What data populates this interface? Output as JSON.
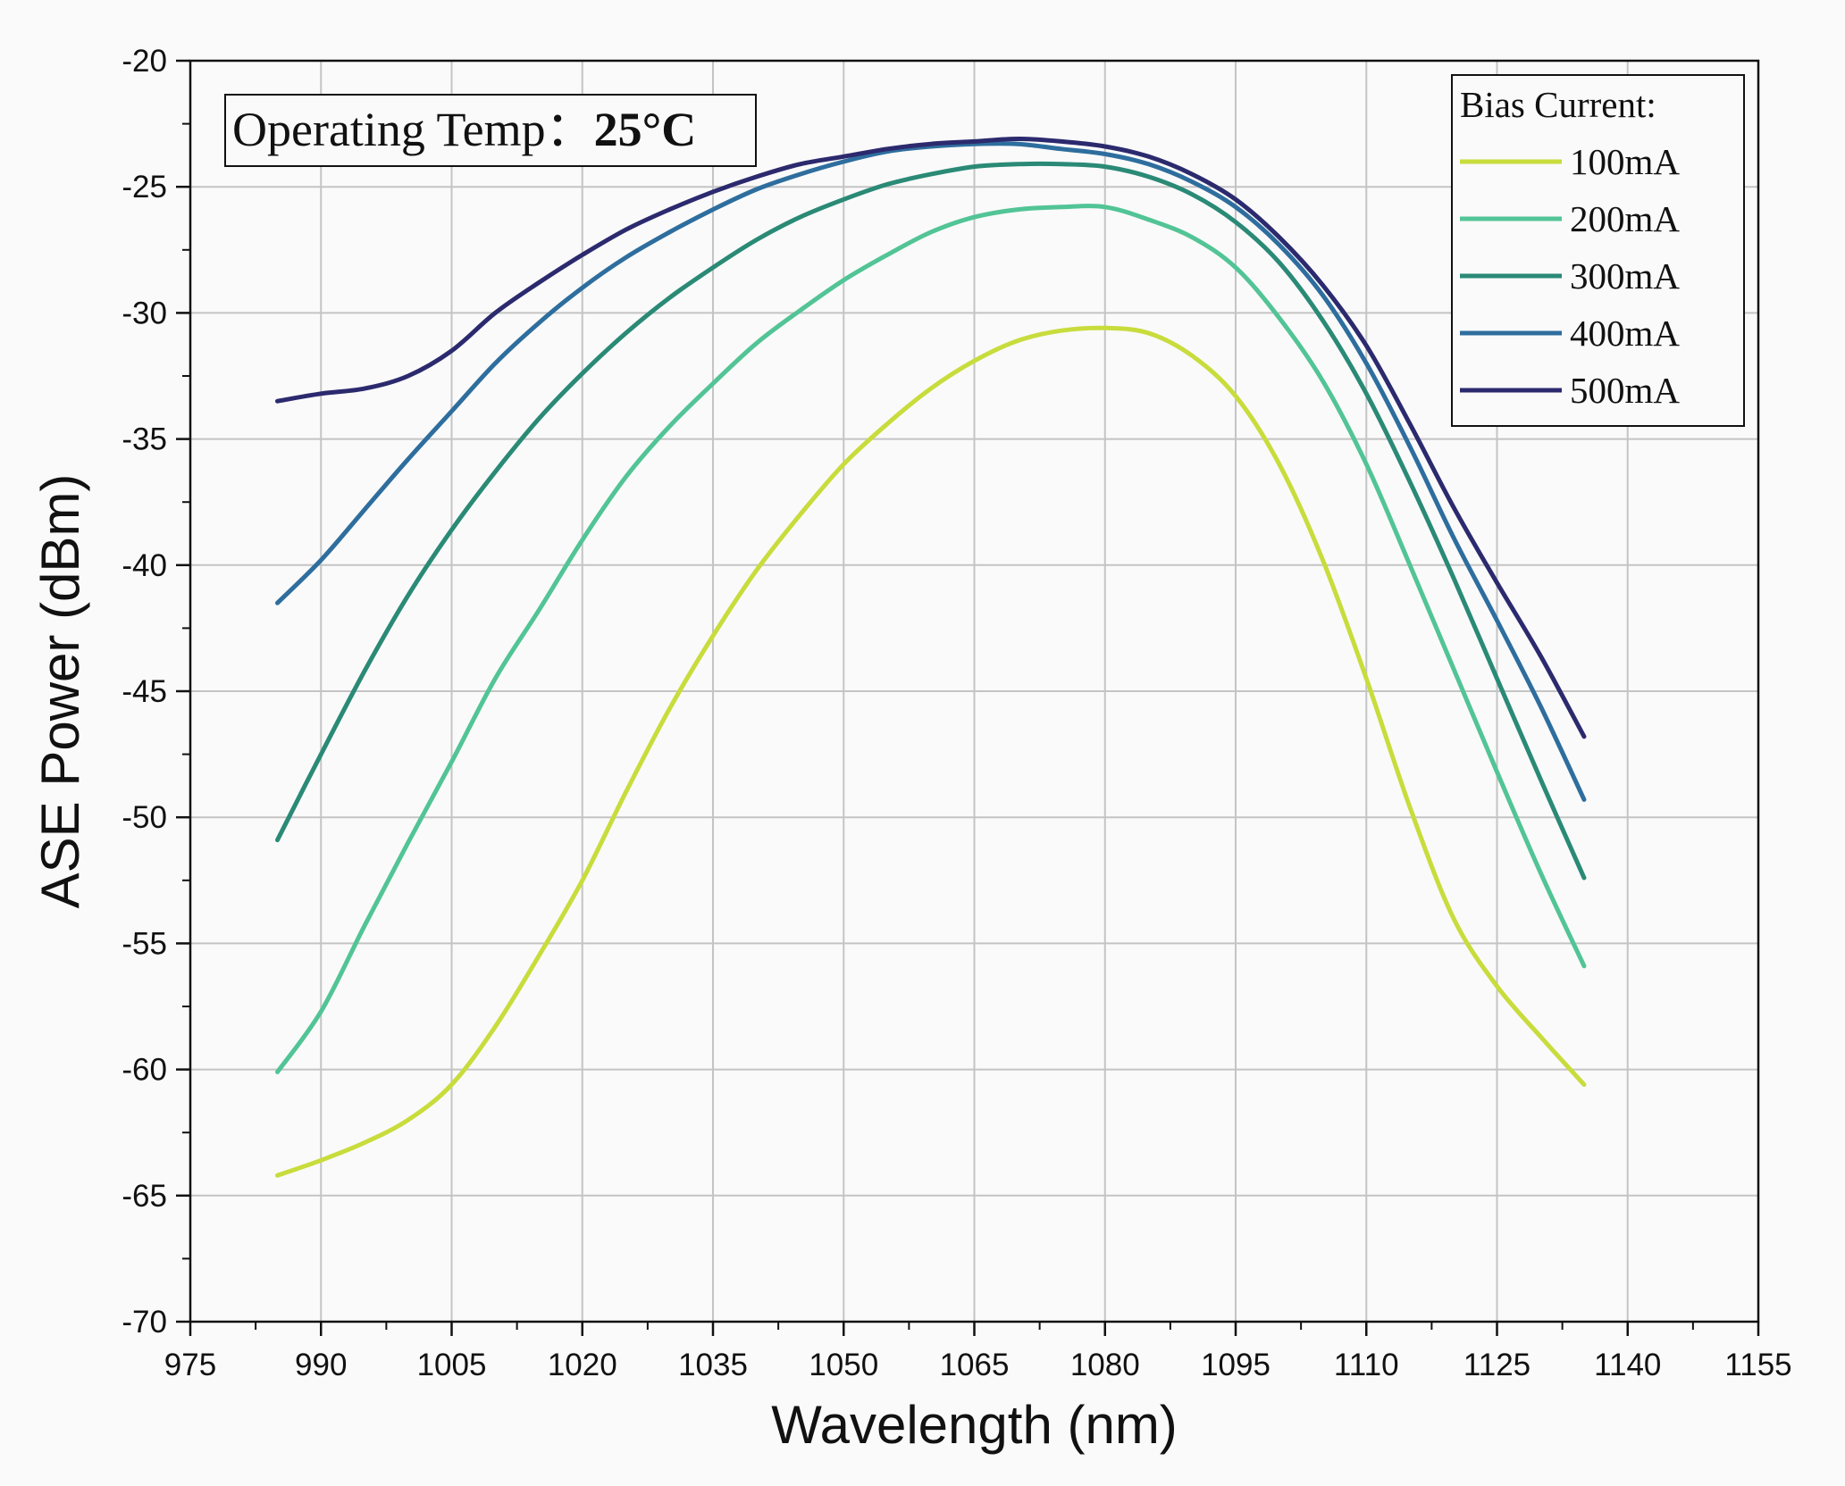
{
  "chart_data": {
    "type": "line",
    "xlabel": "Wavelength (nm)",
    "ylabel": "ASE Power (dBm)",
    "xlim": [
      975,
      1155
    ],
    "ylim": [
      -70,
      -20
    ],
    "xticks": [
      975,
      990,
      1005,
      1020,
      1035,
      1050,
      1065,
      1080,
      1095,
      1110,
      1125,
      1140,
      1155
    ],
    "yticks": [
      -20,
      -25,
      -30,
      -35,
      -40,
      -45,
      -50,
      -55,
      -60,
      -65,
      -70
    ],
    "grid": true,
    "annotation": {
      "label": "Operating Temp：",
      "value": "25°C"
    },
    "legend": {
      "title": "Bias Current:",
      "position": "top-right"
    },
    "series": [
      {
        "name": "100mA",
        "color": "#c8dc3c",
        "x": [
          985,
          990,
          995,
          1000,
          1005,
          1010,
          1015,
          1020,
          1025,
          1030,
          1035,
          1040,
          1045,
          1050,
          1055,
          1060,
          1065,
          1070,
          1075,
          1080,
          1085,
          1090,
          1095,
          1100,
          1105,
          1110,
          1115,
          1120,
          1125,
          1130,
          1135
        ],
        "y": [
          -64.2,
          -63.6,
          -62.9,
          -62.0,
          -60.6,
          -58.3,
          -55.5,
          -52.5,
          -49.0,
          -45.7,
          -42.8,
          -40.2,
          -38.0,
          -36.0,
          -34.4,
          -33.0,
          -31.9,
          -31.1,
          -30.7,
          -30.6,
          -30.8,
          -31.7,
          -33.3,
          -36.0,
          -39.8,
          -44.5,
          -49.6,
          -54.0,
          -56.7,
          -58.7,
          -60.6
        ]
      },
      {
        "name": "200mA",
        "color": "#52c496",
        "x": [
          985,
          990,
          995,
          1000,
          1005,
          1010,
          1015,
          1020,
          1025,
          1030,
          1035,
          1040,
          1045,
          1050,
          1055,
          1060,
          1065,
          1070,
          1075,
          1080,
          1085,
          1090,
          1095,
          1100,
          1105,
          1110,
          1115,
          1120,
          1125,
          1130,
          1135
        ],
        "y": [
          -60.1,
          -57.7,
          -54.3,
          -51.0,
          -47.8,
          -44.5,
          -41.8,
          -39.0,
          -36.5,
          -34.5,
          -32.8,
          -31.2,
          -29.9,
          -28.7,
          -27.7,
          -26.8,
          -26.2,
          -25.9,
          -25.8,
          -25.8,
          -26.3,
          -27.0,
          -28.2,
          -30.2,
          -32.7,
          -36.0,
          -40.0,
          -44.1,
          -48.2,
          -52.2,
          -55.9
        ]
      },
      {
        "name": "300mA",
        "color": "#2a8a76",
        "x": [
          985,
          990,
          995,
          1000,
          1005,
          1010,
          1015,
          1020,
          1025,
          1030,
          1035,
          1040,
          1045,
          1050,
          1055,
          1060,
          1065,
          1070,
          1075,
          1080,
          1085,
          1090,
          1095,
          1100,
          1105,
          1110,
          1115,
          1120,
          1125,
          1130,
          1135
        ],
        "y": [
          -50.9,
          -47.5,
          -44.2,
          -41.2,
          -38.6,
          -36.3,
          -34.2,
          -32.4,
          -30.8,
          -29.4,
          -28.2,
          -27.1,
          -26.2,
          -25.5,
          -24.9,
          -24.5,
          -24.2,
          -24.1,
          -24.1,
          -24.2,
          -24.6,
          -25.3,
          -26.4,
          -28.0,
          -30.3,
          -33.2,
          -36.7,
          -40.5,
          -44.5,
          -48.5,
          -52.4
        ]
      },
      {
        "name": "400mA",
        "color": "#2e6e9e",
        "x": [
          985,
          990,
          995,
          1000,
          1005,
          1010,
          1015,
          1020,
          1025,
          1030,
          1035,
          1040,
          1045,
          1050,
          1055,
          1060,
          1065,
          1070,
          1075,
          1080,
          1085,
          1090,
          1095,
          1100,
          1105,
          1110,
          1115,
          1120,
          1125,
          1130,
          1135
        ],
        "y": [
          -41.5,
          -39.8,
          -37.8,
          -35.8,
          -33.9,
          -32.0,
          -30.4,
          -29.0,
          -27.8,
          -26.8,
          -25.9,
          -25.1,
          -24.5,
          -24.0,
          -23.6,
          -23.4,
          -23.3,
          -23.3,
          -23.5,
          -23.7,
          -24.1,
          -24.8,
          -25.8,
          -27.3,
          -29.3,
          -32.0,
          -35.3,
          -38.9,
          -42.2,
          -45.6,
          -49.3
        ]
      },
      {
        "name": "500mA",
        "color": "#2c2a6e",
        "x": [
          985,
          990,
          995,
          1000,
          1005,
          1010,
          1015,
          1020,
          1025,
          1030,
          1035,
          1040,
          1045,
          1050,
          1055,
          1060,
          1065,
          1070,
          1075,
          1080,
          1085,
          1090,
          1095,
          1100,
          1105,
          1110,
          1115,
          1120,
          1125,
          1130,
          1135
        ],
        "y": [
          -33.5,
          -33.2,
          -33.0,
          -32.5,
          -31.5,
          -30.0,
          -28.8,
          -27.7,
          -26.7,
          -25.9,
          -25.2,
          -24.6,
          -24.1,
          -23.8,
          -23.5,
          -23.3,
          -23.2,
          -23.1,
          -23.2,
          -23.4,
          -23.8,
          -24.5,
          -25.5,
          -27.0,
          -28.9,
          -31.3,
          -34.4,
          -37.7,
          -40.7,
          -43.6,
          -46.8
        ]
      }
    ]
  }
}
